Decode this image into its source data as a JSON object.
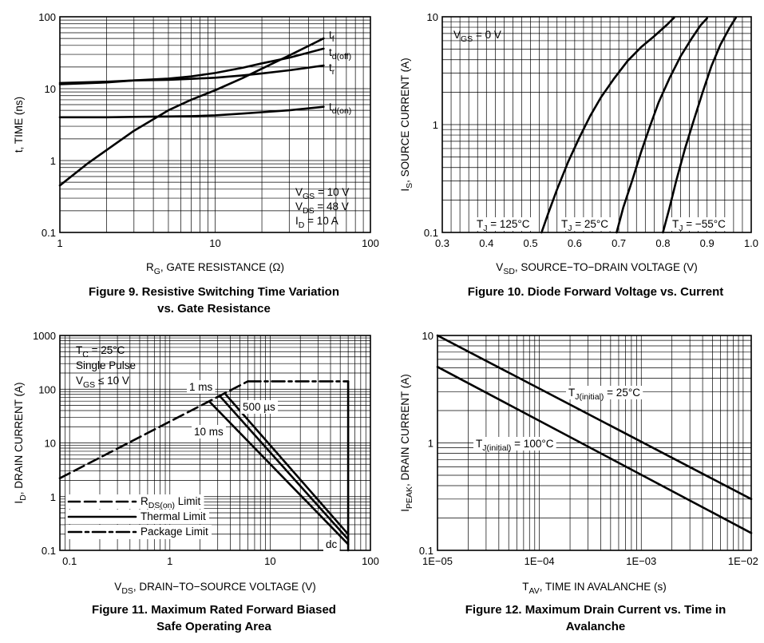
{
  "chart_data": [
    {
      "type": "line",
      "title": "Figure 9. Resistive Switching Time Variation vs. Gate Resistance",
      "caption_lines": [
        "Figure 9. Resistive Switching Time Variation",
        "vs. Gate Resistance"
      ],
      "xlabel": {
        "main": "R",
        "sub": "G",
        "rest": ", GATE RESISTANCE (Ω)"
      },
      "ylabel": {
        "main": "t, TIME (ns)",
        "sub": "",
        "rest": ""
      },
      "xscale": "log",
      "yscale": "log",
      "xlim": [
        1,
        100
      ],
      "ylim": [
        0.1,
        100
      ],
      "xticks": [
        {
          "v": 1,
          "label": "1"
        },
        {
          "v": 10,
          "label": "10"
        },
        {
          "v": 100,
          "label": "100"
        }
      ],
      "yticks": [
        {
          "v": 0.1,
          "label": "0.1"
        },
        {
          "v": 1,
          "label": "1"
        },
        {
          "v": 10,
          "label": "10"
        },
        {
          "v": 100,
          "label": "100"
        }
      ],
      "series": [
        {
          "name": "t_f",
          "label_main": "t",
          "label_sub": "f",
          "x": [
            1,
            1.5,
            2,
            3,
            5,
            7,
            10,
            15,
            20,
            30,
            50
          ],
          "y": [
            0.45,
            0.9,
            1.4,
            2.6,
            5,
            7,
            9.5,
            14,
            19,
            29,
            50
          ]
        },
        {
          "name": "t_d(off)",
          "label_main": "t",
          "label_sub": "d(off)",
          "x": [
            1,
            2,
            3,
            5,
            7,
            10,
            15,
            20,
            30,
            50
          ],
          "y": [
            11.5,
            12.2,
            13,
            13.8,
            14.8,
            16.5,
            19.5,
            22.5,
            27,
            36
          ]
        },
        {
          "name": "t_r",
          "label_main": "t",
          "label_sub": "r",
          "x": [
            1,
            2,
            3,
            5,
            7,
            10,
            15,
            20,
            30,
            50
          ],
          "y": [
            12,
            12.5,
            13,
            13.3,
            13.7,
            14.2,
            15.3,
            16.3,
            18,
            21
          ]
        },
        {
          "name": "t_d(on)",
          "label_main": "t",
          "label_sub": "d(on)",
          "x": [
            1,
            2,
            3,
            5,
            7,
            10,
            15,
            20,
            30,
            50
          ],
          "y": [
            4,
            4,
            4.05,
            4.1,
            4.15,
            4.25,
            4.5,
            4.7,
            5,
            5.6
          ]
        }
      ],
      "annotations": [
        {
          "main": "V",
          "sub": "GS",
          "rest": " = 10 V"
        },
        {
          "main": "V",
          "sub": "DS",
          "rest": " = 48 V"
        },
        {
          "main": "I",
          "sub": "D",
          "rest": " = 10 A"
        }
      ]
    },
    {
      "type": "line",
      "title": "Figure 10. Diode Forward Voltage vs. Current",
      "caption_lines": [
        "Figure 10. Diode Forward Voltage vs. Current"
      ],
      "xlabel": {
        "main": "V",
        "sub": "SD",
        "rest": ", SOURCE−TO−DRAIN VOLTAGE (V)"
      },
      "ylabel": {
        "main": "I",
        "sub": "S",
        "rest": ", SOURCE CURRENT (A)"
      },
      "xscale": "linear",
      "yscale": "log",
      "xlim": [
        0.3,
        1.0
      ],
      "ylim": [
        0.1,
        10
      ],
      "xticks": [
        {
          "v": 0.3,
          "label": "0.3"
        },
        {
          "v": 0.4,
          "label": "0.4"
        },
        {
          "v": 0.5,
          "label": "0.5"
        },
        {
          "v": 0.6,
          "label": "0.6"
        },
        {
          "v": 0.7,
          "label": "0.7"
        },
        {
          "v": 0.8,
          "label": "0.8"
        },
        {
          "v": 0.9,
          "label": "0.9"
        },
        {
          "v": 1.0,
          "label": "1.0"
        }
      ],
      "yticks": [
        {
          "v": 0.1,
          "label": "0.1"
        },
        {
          "v": 1,
          "label": "1"
        },
        {
          "v": 10,
          "label": "10"
        }
      ],
      "series": [
        {
          "name": "T_J = 125°C",
          "x": [
            0.525,
            0.54,
            0.56,
            0.585,
            0.61,
            0.635,
            0.66,
            0.69,
            0.72,
            0.75,
            0.78,
            0.81,
            0.825
          ],
          "y": [
            0.1,
            0.15,
            0.25,
            0.45,
            0.75,
            1.2,
            1.8,
            2.7,
            3.9,
            5.2,
            6.6,
            8.5,
            9.8
          ]
        },
        {
          "name": "T_J = 25°C",
          "x": [
            0.695,
            0.71,
            0.73,
            0.75,
            0.77,
            0.79,
            0.815,
            0.84,
            0.865,
            0.885,
            0.9
          ],
          "y": [
            0.1,
            0.17,
            0.3,
            0.55,
            0.95,
            1.6,
            2.7,
            4.3,
            6.3,
            8.3,
            9.7
          ]
        },
        {
          "name": "T_J = −55°C",
          "x": [
            0.8,
            0.815,
            0.83,
            0.85,
            0.87,
            0.89,
            0.91,
            0.93,
            0.95,
            0.965
          ],
          "y": [
            0.1,
            0.17,
            0.3,
            0.6,
            1.1,
            2.0,
            3.5,
            5.5,
            7.8,
            9.8
          ]
        }
      ],
      "labels": [
        {
          "main": "T",
          "sub": "J",
          "rest": " = 125°C"
        },
        {
          "main": "T",
          "sub": "J",
          "rest": " = 25°C"
        },
        {
          "main": "T",
          "sub": "J",
          "rest": " = −55°C"
        }
      ],
      "annotations": [
        {
          "main": "V",
          "sub": "GS",
          "rest": " = 0 V"
        }
      ]
    },
    {
      "type": "line",
      "title": "Figure 11. Maximum Rated Forward Biased Safe Operating Area",
      "caption_lines": [
        "Figure 11. Maximum Rated Forward Biased",
        "Safe Operating Area"
      ],
      "xlabel": {
        "main": "V",
        "sub": "DS",
        "rest": ", DRAIN−TO−SOURCE VOLTAGE (V)"
      },
      "ylabel": {
        "main": "I",
        "sub": "D",
        "rest": ", DRAIN CURRENT (A)"
      },
      "xscale": "log",
      "yscale": "log",
      "xlim": [
        0.08,
        100
      ],
      "ylim": [
        0.1,
        1000
      ],
      "xticks": [
        {
          "v": 0.1,
          "label": "0.1"
        },
        {
          "v": 1,
          "label": "1"
        },
        {
          "v": 10,
          "label": "10"
        },
        {
          "v": 100,
          "label": "100"
        }
      ],
      "yticks": [
        {
          "v": 0.1,
          "label": "0.1"
        },
        {
          "v": 1,
          "label": "1"
        },
        {
          "v": 10,
          "label": "10"
        },
        {
          "v": 100,
          "label": "100"
        },
        {
          "v": 1000,
          "label": "1000"
        }
      ],
      "series": [
        {
          "name": "R_DS(on) Limit",
          "style": "dash",
          "x": [
            0.08,
            6
          ],
          "y": [
            2.2,
            140
          ]
        },
        {
          "name": "Package Limit",
          "style": "dashdot",
          "x": [
            6,
            60
          ],
          "y": [
            140,
            140
          ]
        },
        {
          "name": "dc",
          "style": "solid",
          "x": [
            60,
            60
          ],
          "y": [
            140,
            0.1
          ]
        },
        {
          "name": "1 ms",
          "style": "solid",
          "x": [
            3.6,
            60
          ],
          "y": [
            80,
            0.2
          ]
        },
        {
          "name": "500 µs",
          "style": "solid",
          "x": [
            3.2,
            60
          ],
          "y": [
            72,
            0.16
          ]
        },
        {
          "name": "10 ms",
          "style": "solid",
          "x": [
            2.5,
            60
          ],
          "y": [
            58,
            0.13
          ]
        }
      ],
      "legend": [
        {
          "main": "R",
          "sub": "DS(on)",
          "rest": " Limit",
          "style": "dash"
        },
        {
          "main": "Thermal Limit",
          "sub": "",
          "rest": "",
          "style": "solid"
        },
        {
          "main": "Package Limit",
          "sub": "",
          "rest": "",
          "style": "dashdot"
        }
      ],
      "labels": [
        {
          "main": "1 ms",
          "sub": "",
          "rest": ""
        },
        {
          "main": "500 µs",
          "sub": "",
          "rest": ""
        },
        {
          "main": "10 ms",
          "sub": "",
          "rest": ""
        },
        {
          "main": "dc",
          "sub": "",
          "rest": ""
        }
      ],
      "annotations": [
        {
          "main": "T",
          "sub": "C",
          "rest": " = 25°C"
        },
        {
          "main": "Single Pulse",
          "sub": "",
          "rest": ""
        },
        {
          "main": "V",
          "sub": "GS",
          "rest": " ≤ 10 V"
        }
      ]
    },
    {
      "type": "line",
      "title": "Figure 12. Maximum Drain Current vs. Time in Avalanche",
      "caption_lines": [
        "Figure 12. Maximum Drain Current vs. Time in",
        "Avalanche"
      ],
      "xlabel": {
        "main": "T",
        "sub": "AV",
        "rest": ", TIME IN AVALANCHE (s)"
      },
      "ylabel": {
        "main": "I",
        "sub": "PEAK",
        "rest": ", DRAIN CURRENT (A)"
      },
      "xscale": "log",
      "yscale": "log",
      "xlim": [
        1e-05,
        0.012
      ],
      "ylim": [
        0.1,
        10
      ],
      "xticks": [
        {
          "v": 1e-05,
          "label": "1E−05"
        },
        {
          "v": 0.0001,
          "label": "1E−04"
        },
        {
          "v": 0.001,
          "label": "1E−03"
        },
        {
          "v": 0.01,
          "label": "1E−02"
        }
      ],
      "yticks": [
        {
          "v": 0.1,
          "label": "0.1"
        },
        {
          "v": 1,
          "label": "1"
        },
        {
          "v": 10,
          "label": "10"
        }
      ],
      "series": [
        {
          "name": "T_J(initial) = 25°C",
          "x": [
            1e-05,
            0.012
          ],
          "y": [
            10,
            0.3
          ]
        },
        {
          "name": "T_J(initial) = 100°C",
          "x": [
            1e-05,
            0.012
          ],
          "y": [
            5.1,
            0.145
          ]
        }
      ],
      "labels": [
        {
          "main": "T",
          "sub": "J(initial)",
          "rest": " = 25°C"
        },
        {
          "main": "T",
          "sub": "J(initial)",
          "rest": " = 100°C"
        }
      ]
    }
  ]
}
